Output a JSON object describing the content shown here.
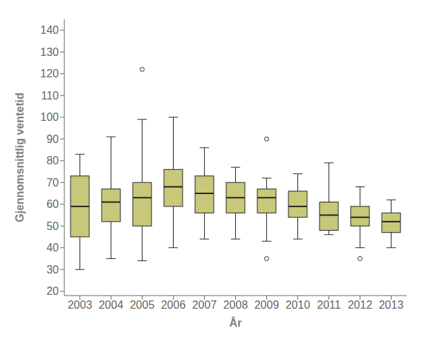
{
  "chart_data": {
    "type": "box",
    "xlabel": "År",
    "ylabel": "Gjennomsnittlig ventetid",
    "categories": [
      "2003",
      "2004",
      "2005",
      "2006",
      "2007",
      "2008",
      "2009",
      "2010",
      "2011",
      "2012",
      "2013"
    ],
    "boxes": [
      {
        "low": 30,
        "q1": 45,
        "median": 59,
        "q3": 73,
        "high": 83,
        "outliers": []
      },
      {
        "low": 35,
        "q1": 52,
        "median": 61,
        "q3": 67,
        "high": 91,
        "outliers": []
      },
      {
        "low": 34,
        "q1": 50,
        "median": 63,
        "q3": 70,
        "high": 99,
        "outliers": [
          122
        ]
      },
      {
        "low": 40,
        "q1": 59,
        "median": 68,
        "q3": 76,
        "high": 100,
        "outliers": []
      },
      {
        "low": 44,
        "q1": 56,
        "median": 65,
        "q3": 73,
        "high": 86,
        "outliers": []
      },
      {
        "low": 44,
        "q1": 56,
        "median": 63,
        "q3": 70,
        "high": 77,
        "outliers": []
      },
      {
        "low": 43,
        "q1": 56,
        "median": 63,
        "q3": 67,
        "high": 72,
        "outliers": [
          35,
          90
        ]
      },
      {
        "low": 44,
        "q1": 54,
        "median": 59,
        "q3": 66,
        "high": 74,
        "outliers": []
      },
      {
        "low": 46,
        "q1": 48,
        "median": 55,
        "q3": 61,
        "high": 79,
        "outliers": []
      },
      {
        "low": 40,
        "q1": 50,
        "median": 54,
        "q3": 59,
        "high": 68,
        "outliers": [
          35
        ]
      },
      {
        "low": 40,
        "q1": 47,
        "median": 52,
        "q3": 56,
        "high": 62,
        "outliers": []
      }
    ],
    "color": "#c8c87a",
    "ylim": [
      18,
      145
    ],
    "yticks": [
      20,
      30,
      40,
      50,
      60,
      70,
      80,
      90,
      100,
      110,
      120,
      130,
      140
    ],
    "grid": false
  }
}
